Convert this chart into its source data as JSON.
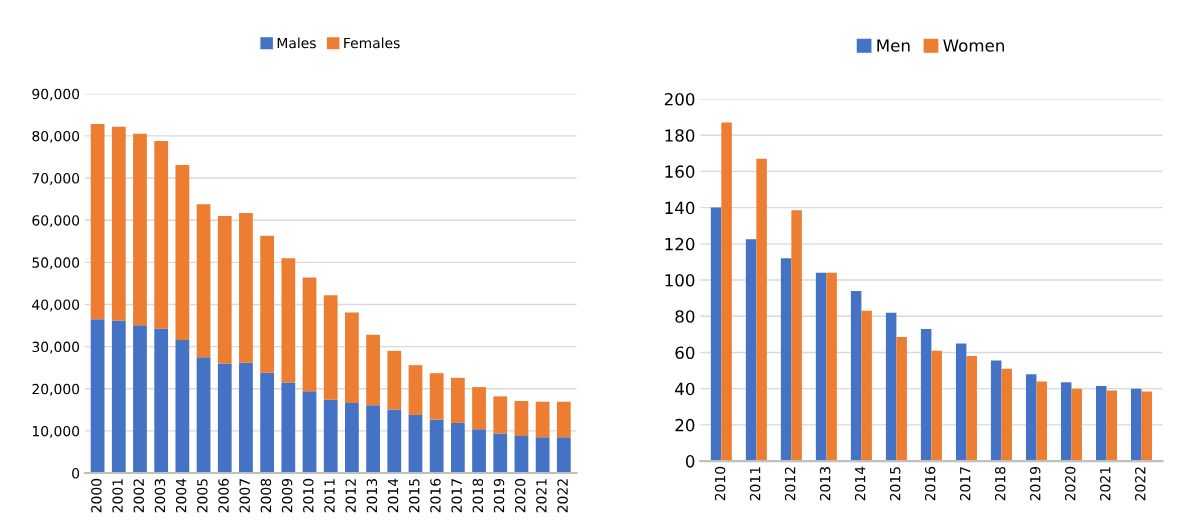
{
  "chart_data": [
    {
      "type": "bar",
      "stacked": true,
      "categories": [
        "2000",
        "2001",
        "2002",
        "2003",
        "2004",
        "2005",
        "2006",
        "2007",
        "2008",
        "2009",
        "2010",
        "2011",
        "2012",
        "2013",
        "2014",
        "2015",
        "2016",
        "2017",
        "2018",
        "2019",
        "2020",
        "2021",
        "2022"
      ],
      "series": [
        {
          "name": "Males",
          "color": "#4472c4",
          "values": [
            36500,
            36200,
            35100,
            34300,
            31600,
            27500,
            26000,
            26200,
            23800,
            21500,
            19400,
            17400,
            16600,
            16100,
            15100,
            13800,
            12700,
            11900,
            10400,
            9400,
            8800,
            8500,
            8500
          ]
        },
        {
          "name": "Females",
          "color": "#ed7d31",
          "values": [
            46300,
            46000,
            45400,
            44500,
            41500,
            36300,
            35000,
            35500,
            32500,
            29500,
            27000,
            24800,
            21500,
            16700,
            13900,
            11800,
            11000,
            10700,
            10000,
            8800,
            8300,
            8400,
            8400
          ]
        }
      ],
      "ylim": [
        0,
        90000
      ],
      "yticks": [
        {
          "value": 0,
          "label": "0"
        },
        {
          "value": 10000,
          "label": "10,000"
        },
        {
          "value": 20000,
          "label": "20,000"
        },
        {
          "value": 30000,
          "label": "30,000"
        },
        {
          "value": 40000,
          "label": "40,000"
        },
        {
          "value": 50000,
          "label": "50,000"
        },
        {
          "value": 60000,
          "label": "60,000"
        },
        {
          "value": 70000,
          "label": "70,000"
        },
        {
          "value": 80000,
          "label": "80,000"
        },
        {
          "value": 90000,
          "label": "90,000"
        }
      ],
      "grid": "y",
      "legend": "top"
    },
    {
      "type": "bar",
      "categories": [
        "2010",
        "2011",
        "2012",
        "2013",
        "2014",
        "2015",
        "2016",
        "2017",
        "2018",
        "2019",
        "2020",
        "2021",
        "2022"
      ],
      "series": [
        {
          "name": "Men",
          "color": "#4472c4",
          "values": [
            140,
            122.5,
            112,
            104,
            94,
            82,
            73,
            65,
            55.5,
            48,
            43.5,
            41.5,
            40
          ]
        },
        {
          "name": "Women",
          "color": "#ed7d31",
          "values": [
            187,
            167,
            138.5,
            104,
            83,
            68.5,
            61,
            58,
            51,
            44,
            40,
            39,
            38.5
          ]
        }
      ],
      "ylim": [
        0,
        200
      ],
      "yticks": [
        0,
        20,
        40,
        60,
        80,
        100,
        120,
        140,
        160,
        180,
        200
      ],
      "grid": "y",
      "legend": "top"
    }
  ]
}
